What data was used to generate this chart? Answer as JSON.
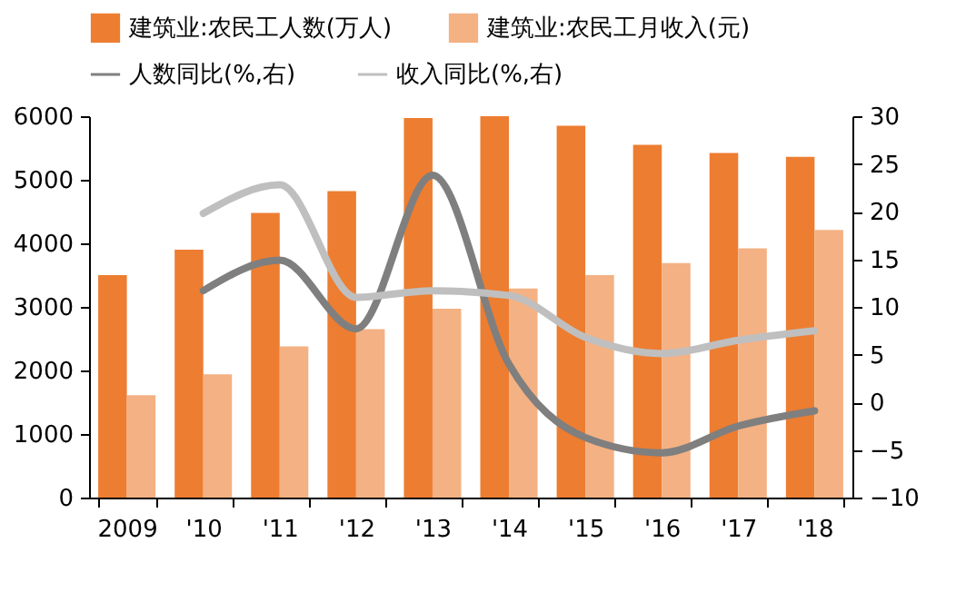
{
  "chart_data": {
    "type": "bar",
    "categories": [
      "2009",
      "'10",
      "'11",
      "'12",
      "'13",
      "'14",
      "'15",
      "'16",
      "'17",
      "'18"
    ],
    "series": [
      {
        "name": "建筑业:农民工人数(万人)",
        "color": "#ed7d31",
        "values": [
          3500,
          3900,
          4480,
          4820,
          5970,
          6000,
          5850,
          5550,
          5420,
          5360
        ]
      },
      {
        "name": "建筑业:农民工月收入(元)",
        "color": "#f4b183",
        "values": [
          1610,
          1940,
          2380,
          2650,
          2970,
          3290,
          3500,
          3690,
          3920,
          4210
        ]
      },
      {
        "name": "人数同比(%,右)",
        "type": "line",
        "axis": "y2",
        "color": "#7f7f7f",
        "values": [
          null,
          11.7,
          14.9,
          7.7,
          23.8,
          4.0,
          -3.7,
          -5.3,
          -2.5,
          -0.9
        ]
      },
      {
        "name": "收入同比(%,右)",
        "type": "line",
        "axis": "y2",
        "color": "#bfbfbf",
        "values": [
          null,
          19.8,
          22.8,
          11.0,
          11.7,
          11.2,
          6.8,
          5.1,
          6.5,
          7.5
        ]
      }
    ],
    "ylim": [
      0,
      6000
    ],
    "yticks": [
      0,
      1000,
      2000,
      3000,
      4000,
      5000,
      6000
    ],
    "y2lim": [
      -10,
      30
    ],
    "y2ticks": [
      -10,
      -5,
      0,
      5,
      10,
      15,
      20,
      25,
      30
    ],
    "grid": false,
    "legend": "top"
  }
}
